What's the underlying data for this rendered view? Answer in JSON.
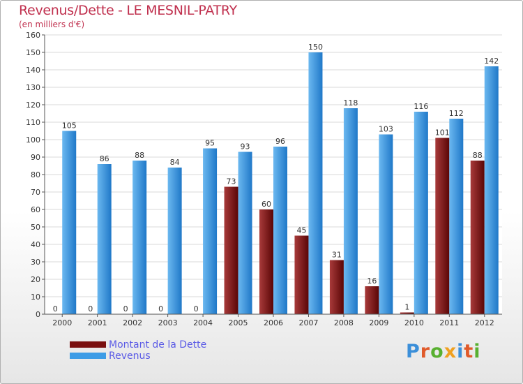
{
  "header": {
    "title": "Revenus/Dette - LE MESNIL-PATRY",
    "subtitle": "(en milliers d'€)"
  },
  "chart_data": {
    "type": "bar",
    "categories": [
      "2000",
      "2001",
      "2002",
      "2003",
      "2004",
      "2005",
      "2006",
      "2007",
      "2008",
      "2009",
      "2010",
      "2011",
      "2012"
    ],
    "series": [
      {
        "name": "Montant de la Dette",
        "color": "#7a1010",
        "values": [
          0,
          0,
          0,
          0,
          0,
          73,
          60,
          45,
          31,
          16,
          1,
          101,
          88
        ]
      },
      {
        "name": "Revenus",
        "color": "#3d9ce6",
        "values": [
          105,
          86,
          88,
          84,
          95,
          93,
          96,
          150,
          118,
          103,
          116,
          112,
          142
        ]
      }
    ],
    "yticks": [
      0,
      10,
      20,
      30,
      40,
      50,
      60,
      70,
      80,
      90,
      100,
      110,
      120,
      130,
      140,
      150,
      160
    ],
    "ylim": [
      0,
      160
    ],
    "grid": true,
    "legend": "bottom-left"
  },
  "logo": {
    "letters": [
      {
        "ch": "P",
        "color": "#3b8fd9"
      },
      {
        "ch": "r",
        "color": "#e05a2a"
      },
      {
        "ch": "o",
        "color": "#58b030"
      },
      {
        "ch": "x",
        "color": "#f0a020"
      },
      {
        "ch": "i",
        "color": "#3b8fd9"
      },
      {
        "ch": "t",
        "color": "#e05a2a"
      },
      {
        "ch": "i",
        "color": "#58b030"
      }
    ]
  }
}
